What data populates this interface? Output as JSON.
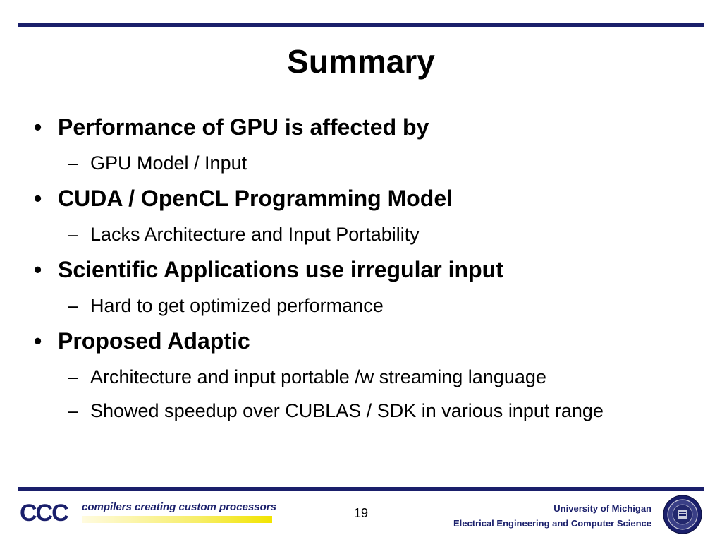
{
  "slide": {
    "title": "Summary",
    "bullets": [
      {
        "text": "Performance of GPU is affected by",
        "subs": [
          "GPU Model / Input"
        ]
      },
      {
        "text": "CUDA / OpenCL Programming Model",
        "subs": [
          "Lacks Architecture and Input Portability"
        ]
      },
      {
        "text": "Scientific Applications use irregular input",
        "subs": [
          "Hard to get optimized performance"
        ]
      },
      {
        "text": "Proposed Adaptic",
        "subs": [
          "Architecture and input portable /w streaming language",
          "Showed speedup over CUBLAS / SDK in various input range"
        ]
      }
    ],
    "bullet_symbol": "•",
    "sub_symbol": "–"
  },
  "footer": {
    "logo_text": "CCC",
    "logo_tagline": "compilers creating custom processors",
    "page_number": "19",
    "affiliation_line1": "University of Michigan",
    "affiliation_line2": "Electrical Engineering and Computer Science",
    "seal_icon": "university-seal-icon"
  },
  "colors": {
    "rule": "#1a1f6b",
    "logo": "#1a1f6b",
    "logo_bar": "#f2e400"
  }
}
